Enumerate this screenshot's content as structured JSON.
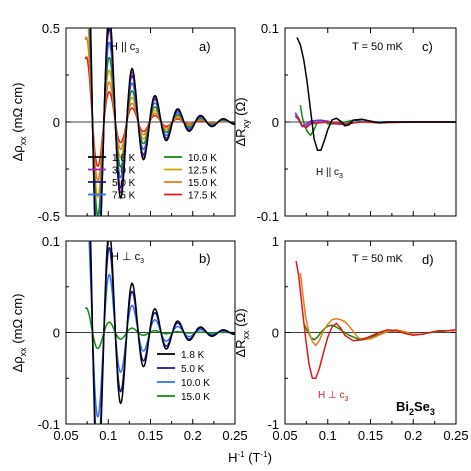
{
  "figure": {
    "shared_xlabel": "H⁻¹ (T⁻¹)",
    "material_label": "Bi₂Se₃"
  },
  "chart_data": [
    {
      "id": "a",
      "type": "line",
      "panel_label": "a)",
      "condition": "H || c3",
      "ylabel": "Δρxx (mΩ cm)",
      "xlim": [
        0.05,
        0.25
      ],
      "ylim": [
        -0.5,
        0.5
      ],
      "xticks": [
        0.05,
        0.1,
        0.15,
        0.2,
        0.25
      ],
      "yticks": [
        -0.5,
        0,
        0.5
      ],
      "ytick_labels": [
        "-0.5",
        "0",
        "0.5"
      ],
      "x_tick_labels_shown": false,
      "zero_line": true,
      "legend": {
        "placement": "bottom",
        "columns": 2
      },
      "series": [
        {
          "name": "1.8 K",
          "color": "#000000",
          "x_start": 0.073,
          "A": 1.2,
          "k": 14,
          "f": 37,
          "phi": 1.5
        },
        {
          "name": "3.0 K",
          "color": "#a020c8",
          "x_start": 0.073,
          "A": 1.12,
          "k": 14,
          "f": 37,
          "phi": 1.5
        },
        {
          "name": "5.0 K",
          "color": "#1414a0",
          "x_start": 0.073,
          "A": 1.04,
          "k": 14,
          "f": 37,
          "phi": 1.5
        },
        {
          "name": "7.5 K",
          "color": "#3070f0",
          "x_start": 0.073,
          "A": 0.9,
          "k": 14.5,
          "f": 37,
          "phi": 1.5
        },
        {
          "name": "10.0 K",
          "color": "#108a10",
          "x_start": 0.073,
          "A": 0.74,
          "k": 15,
          "f": 37,
          "phi": 1.5
        },
        {
          "name": "12.5 K",
          "color": "#d8a000",
          "x_start": 0.073,
          "A": 0.6,
          "k": 15.5,
          "f": 37,
          "phi": 1.5
        },
        {
          "name": "15.0 K",
          "color": "#f07818",
          "x_start": 0.073,
          "A": 0.47,
          "k": 16,
          "f": 37,
          "phi": 1.5
        },
        {
          "name": "17.5 K",
          "color": "#e01818",
          "x_start": 0.073,
          "A": 0.36,
          "k": 16.5,
          "f": 37,
          "phi": 1.5
        }
      ]
    },
    {
      "id": "b",
      "type": "line",
      "panel_label": "b)",
      "condition": "H ⊥ c3",
      "ylabel": "Δρxx (mΩ cm)",
      "xlim": [
        0.05,
        0.25
      ],
      "ylim": [
        -0.1,
        0.1
      ],
      "xticks": [
        0.05,
        0.1,
        0.15,
        0.2,
        0.25
      ],
      "yticks": [
        -0.1,
        0,
        0.1
      ],
      "ytick_labels": [
        "-0.1",
        "0",
        "0.1"
      ],
      "x_tick_labels_shown": true,
      "zero_line": true,
      "legend": {
        "placement": "bottom-right",
        "columns": 1
      },
      "series": [
        {
          "name": "1.8 K",
          "color": "#000000",
          "x_start": 0.073,
          "A": 0.24,
          "k": 15,
          "f": 37,
          "phi": 1.5
        },
        {
          "name": "5.0 K",
          "color": "#1414a0",
          "x_start": 0.073,
          "A": 0.2,
          "k": 15,
          "f": 37,
          "phi": 1.5
        },
        {
          "name": "10.0 K",
          "color": "#3070f0",
          "x_start": 0.073,
          "A": 0.14,
          "k": 16,
          "f": 37,
          "phi": 1.5
        },
        {
          "name": "15.0 K",
          "color": "#108a10",
          "x_start": 0.073,
          "A": 0.028,
          "k": 20,
          "f": 37,
          "phi": 1.5
        }
      ]
    },
    {
      "id": "c",
      "type": "line",
      "panel_label": "c)",
      "condition": "H || c3",
      "temperature_label": "T = 50 mK",
      "ylabel": "ΔRxy (Ω)",
      "xlim": [
        0.05,
        0.25
      ],
      "ylim": [
        -0.1,
        0.1
      ],
      "xticks": [
        0.05,
        0.1,
        0.15,
        0.2,
        0.25
      ],
      "yticks": [
        -0.1,
        0,
        0.1
      ],
      "ytick_labels": [
        "-0.1",
        "0",
        "0.1"
      ],
      "x_tick_labels_shown": false,
      "zero_line": true,
      "series": [
        {
          "color": "#000000",
          "points": [
            [
              0.064,
              0.09
            ],
            [
              0.068,
              0.082
            ],
            [
              0.072,
              0.066
            ],
            [
              0.076,
              0.042
            ],
            [
              0.08,
              0.012
            ],
            [
              0.084,
              -0.018
            ],
            [
              0.088,
              -0.03
            ],
            [
              0.092,
              -0.03
            ],
            [
              0.096,
              -0.02
            ],
            [
              0.1,
              -0.008
            ],
            [
              0.105,
              0.002
            ],
            [
              0.11,
              0.004
            ],
            [
              0.115,
              0.001
            ],
            [
              0.12,
              -0.004
            ],
            [
              0.125,
              -0.003
            ],
            [
              0.13,
              0.002
            ],
            [
              0.14,
              0.003
            ],
            [
              0.15,
              0.001
            ],
            [
              0.16,
              -0.001
            ],
            [
              0.17,
              0.0
            ],
            [
              0.2,
              0.0
            ],
            [
              0.25,
              0.0
            ]
          ]
        },
        {
          "color": "#e01818",
          "points": [
            [
              0.062,
              0.006
            ],
            [
              0.066,
              0.003
            ],
            [
              0.07,
              -0.004
            ],
            [
              0.075,
              -0.006
            ],
            [
              0.08,
              -0.002
            ],
            [
              0.09,
              -0.001
            ],
            [
              0.1,
              0.0
            ],
            [
              0.12,
              -0.002
            ],
            [
              0.14,
              0.0
            ],
            [
              0.16,
              -0.001
            ],
            [
              0.2,
              0.0
            ],
            [
              0.25,
              0.0
            ]
          ]
        },
        {
          "color": "#3070f0",
          "points": [
            [
              0.062,
              0.008
            ],
            [
              0.066,
              0.002
            ],
            [
              0.07,
              -0.005
            ],
            [
              0.075,
              -0.004
            ],
            [
              0.08,
              -0.001
            ],
            [
              0.09,
              0.0
            ],
            [
              0.1,
              0.0
            ],
            [
              0.12,
              -0.002
            ],
            [
              0.14,
              0.001
            ],
            [
              0.16,
              0.0
            ],
            [
              0.2,
              0.0
            ],
            [
              0.25,
              0.0
            ]
          ]
        },
        {
          "color": "#a020c8",
          "points": [
            [
              0.062,
              0.01
            ],
            [
              0.066,
              0.004
            ],
            [
              0.07,
              -0.004
            ],
            [
              0.075,
              -0.002
            ],
            [
              0.08,
              0.001
            ],
            [
              0.09,
              0.002
            ],
            [
              0.1,
              0.001
            ],
            [
              0.11,
              -0.002
            ],
            [
              0.12,
              -0.003
            ],
            [
              0.13,
              -0.001
            ],
            [
              0.14,
              0.001
            ],
            [
              0.16,
              0.0
            ],
            [
              0.2,
              0.0
            ],
            [
              0.25,
              0.0
            ]
          ]
        },
        {
          "color": "#108a10",
          "points": [
            [
              0.068,
              0.018
            ],
            [
              0.07,
              0.006
            ],
            [
              0.073,
              -0.004
            ],
            [
              0.076,
              -0.01
            ],
            [
              0.08,
              -0.014
            ],
            [
              0.084,
              -0.008
            ],
            [
              0.088,
              0.0
            ],
            [
              0.092,
              0.002
            ],
            [
              0.096,
              0.001
            ],
            [
              0.1,
              -0.002
            ],
            [
              0.11,
              -0.002
            ],
            [
              0.12,
              0.0
            ],
            [
              0.13,
              0.002
            ],
            [
              0.14,
              0.001
            ],
            [
              0.16,
              0.0
            ],
            [
              0.2,
              0.0
            ],
            [
              0.25,
              0.0
            ]
          ]
        }
      ]
    },
    {
      "id": "d",
      "type": "line",
      "panel_label": "d)",
      "condition": "H ⊥ c3",
      "temperature_label": "T = 50 mK",
      "ylabel": "ΔRxx (Ω)",
      "xlim": [
        0.05,
        0.25
      ],
      "ylim": [
        -1,
        1
      ],
      "xticks": [
        0.05,
        0.1,
        0.15,
        0.2,
        0.25
      ],
      "yticks": [
        -1,
        0,
        1
      ],
      "ytick_labels": [
        "-1",
        "0",
        "1"
      ],
      "x_tick_labels_shown": true,
      "zero_line": true,
      "series": [
        {
          "color": "#e01818",
          "points": [
            [
              0.063,
              0.78
            ],
            [
              0.066,
              0.62
            ],
            [
              0.07,
              0.28
            ],
            [
              0.074,
              -0.05
            ],
            [
              0.078,
              -0.34
            ],
            [
              0.082,
              -0.5
            ],
            [
              0.086,
              -0.5
            ],
            [
              0.09,
              -0.4
            ],
            [
              0.095,
              -0.22
            ],
            [
              0.1,
              -0.05
            ],
            [
              0.105,
              0.06
            ],
            [
              0.11,
              0.1
            ],
            [
              0.115,
              0.05
            ],
            [
              0.12,
              -0.03
            ],
            [
              0.13,
              -0.09
            ],
            [
              0.14,
              -0.08
            ],
            [
              0.15,
              -0.04
            ],
            [
              0.16,
              0.0
            ],
            [
              0.17,
              0.03
            ],
            [
              0.18,
              0.02
            ],
            [
              0.19,
              -0.01
            ],
            [
              0.2,
              -0.03
            ],
            [
              0.21,
              -0.02
            ],
            [
              0.22,
              0.0
            ],
            [
              0.23,
              0.02
            ],
            [
              0.24,
              0.02
            ],
            [
              0.25,
              0.03
            ]
          ]
        },
        {
          "color": "#f07818",
          "points": [
            [
              0.068,
              0.65
            ],
            [
              0.071,
              0.4
            ],
            [
              0.074,
              0.18
            ],
            [
              0.078,
              0.0
            ],
            [
              0.082,
              -0.1
            ],
            [
              0.086,
              -0.14
            ],
            [
              0.09,
              -0.09
            ],
            [
              0.095,
              0.02
            ],
            [
              0.1,
              0.09
            ],
            [
              0.105,
              0.14
            ],
            [
              0.11,
              0.15
            ],
            [
              0.115,
              0.14
            ],
            [
              0.12,
              0.12
            ],
            [
              0.125,
              0.07
            ],
            [
              0.13,
              0.01
            ],
            [
              0.135,
              -0.05
            ],
            [
              0.14,
              -0.08
            ],
            [
              0.15,
              -0.07
            ],
            [
              0.16,
              -0.03
            ],
            [
              0.17,
              0.01
            ],
            [
              0.18,
              0.03
            ],
            [
              0.19,
              0.01
            ],
            [
              0.2,
              -0.02
            ],
            [
              0.21,
              -0.02
            ],
            [
              0.22,
              0.0
            ],
            [
              0.23,
              0.02
            ],
            [
              0.24,
              0.02
            ],
            [
              0.25,
              0.02
            ]
          ]
        },
        {
          "color": "#108a10",
          "points": [
            [
              0.072,
              0.1
            ],
            [
              0.076,
              0.02
            ],
            [
              0.08,
              -0.05
            ],
            [
              0.084,
              -0.08
            ],
            [
              0.088,
              -0.05
            ],
            [
              0.092,
              0.0
            ],
            [
              0.096,
              0.04
            ],
            [
              0.1,
              0.07
            ],
            [
              0.105,
              0.08
            ],
            [
              0.11,
              0.06
            ],
            [
              0.115,
              0.03
            ],
            [
              0.12,
              0.0
            ],
            [
              0.125,
              -0.03
            ],
            [
              0.13,
              -0.05
            ],
            [
              0.135,
              -0.07
            ],
            [
              0.14,
              -0.07
            ],
            [
              0.15,
              -0.05
            ],
            [
              0.16,
              -0.02
            ],
            [
              0.17,
              0.01
            ],
            [
              0.18,
              0.02
            ],
            [
              0.19,
              0.0
            ],
            [
              0.2,
              -0.02
            ],
            [
              0.21,
              -0.02
            ],
            [
              0.22,
              0.0
            ],
            [
              0.23,
              0.01
            ],
            [
              0.24,
              0.02
            ],
            [
              0.25,
              0.02
            ]
          ]
        }
      ]
    }
  ]
}
